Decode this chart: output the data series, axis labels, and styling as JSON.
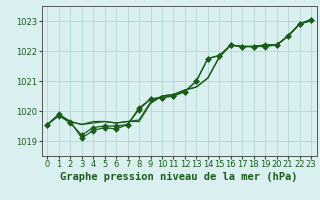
{
  "title": "Graphe pression niveau de la mer (hPa)",
  "bg_color": "#daf0f0",
  "grid_color": "#b8d8d8",
  "line_color": "#1a5c1a",
  "xlim": [
    -0.5,
    23.5
  ],
  "ylim": [
    1018.5,
    1023.5
  ],
  "yticks": [
    1019,
    1020,
    1021,
    1022,
    1023
  ],
  "xticks": [
    0,
    1,
    2,
    3,
    4,
    5,
    6,
    7,
    8,
    9,
    10,
    11,
    12,
    13,
    14,
    15,
    16,
    17,
    18,
    19,
    20,
    21,
    22,
    23
  ],
  "series_plain": [
    [
      1019.55,
      1019.85,
      1019.65,
      1019.55,
      1019.6,
      1019.65,
      1019.6,
      1019.65,
      1019.65,
      1020.25,
      1020.5,
      1020.55,
      1020.7,
      1020.8,
      1021.1,
      1021.8,
      1022.2,
      1022.15,
      1022.15,
      1022.2,
      1022.2,
      1022.5,
      1022.9,
      1023.0
    ],
    [
      1019.55,
      1019.85,
      1019.65,
      1019.55,
      1019.65,
      1019.65,
      1019.6,
      1019.65,
      1019.7,
      1020.3,
      1020.5,
      1020.55,
      1020.7,
      1020.8,
      1021.1,
      1021.8,
      1022.2,
      1022.15,
      1022.15,
      1022.2,
      1022.2,
      1022.5,
      1022.9,
      1023.05
    ]
  ],
  "series_marked": [
    [
      1019.55,
      1019.9,
      1019.65,
      1019.1,
      1019.35,
      1019.45,
      1019.4,
      1019.55,
      1020.05,
      1020.4,
      1020.45,
      1020.5,
      1020.65,
      1021.0,
      1021.75,
      1021.85,
      1022.2,
      1022.15,
      1022.15,
      1022.15,
      1022.2,
      1022.5,
      1022.9,
      1023.05
    ],
    [
      1019.55,
      1019.85,
      1019.6,
      1019.2,
      1019.45,
      1019.5,
      1019.5,
      1019.55,
      1020.1,
      1020.4,
      1020.45,
      1020.5,
      1020.65,
      1021.0,
      1021.75,
      1021.85,
      1022.2,
      1022.15,
      1022.15,
      1022.2,
      1022.2,
      1022.5,
      1022.9,
      1023.05
    ]
  ],
  "marker_size": 3.0,
  "linewidth": 0.9,
  "title_fontsize": 7.5,
  "tick_fontsize": 6.0,
  "tick_color": "#1a5c1a",
  "axis_color": "#555555"
}
